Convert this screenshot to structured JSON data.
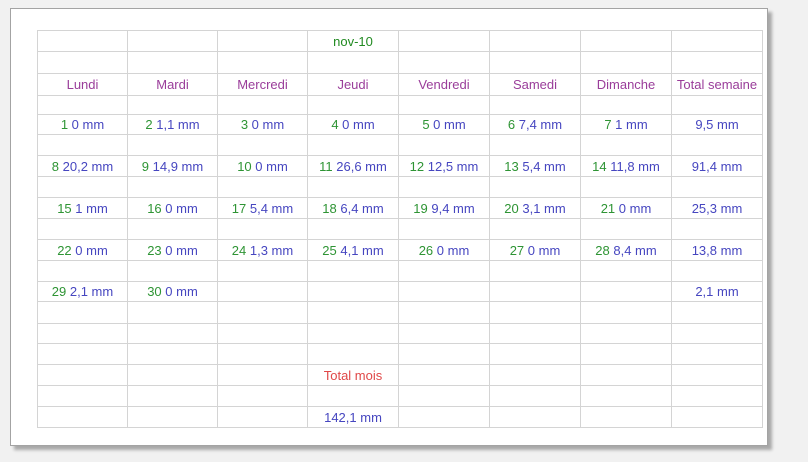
{
  "sheet": {
    "month_label": "nov-10",
    "headers": [
      "Lundi",
      "Mardi",
      "Mercredi",
      "Jeudi",
      "Vendredi",
      "Samedi",
      "Dimanche",
      "Total semaine"
    ],
    "weeks": [
      {
        "days": [
          {
            "day": "1",
            "value": "0 mm"
          },
          {
            "day": "2",
            "value": "1,1 mm"
          },
          {
            "day": "3",
            "value": "0 mm"
          },
          {
            "day": "4",
            "value": "0 mm"
          },
          {
            "day": "5",
            "value": "0 mm"
          },
          {
            "day": "6",
            "value": "7,4 mm"
          },
          {
            "day": "7",
            "value": "1 mm"
          }
        ],
        "total": "9,5 mm"
      },
      {
        "days": [
          {
            "day": "8",
            "value": "20,2 mm"
          },
          {
            "day": "9",
            "value": "14,9 mm"
          },
          {
            "day": "10",
            "value": "0 mm"
          },
          {
            "day": "11",
            "value": "26,6 mm"
          },
          {
            "day": "12",
            "value": "12,5 mm"
          },
          {
            "day": "13",
            "value": "5,4 mm"
          },
          {
            "day": "14",
            "value": "11,8 mm"
          }
        ],
        "total": "91,4 mm"
      },
      {
        "days": [
          {
            "day": "15",
            "value": "1 mm"
          },
          {
            "day": "16",
            "value": "0 mm"
          },
          {
            "day": "17",
            "value": "5,4 mm"
          },
          {
            "day": "18",
            "value": "6,4 mm"
          },
          {
            "day": "19",
            "value": "9,4 mm"
          },
          {
            "day": "20",
            "value": "3,1 mm"
          },
          {
            "day": "21",
            "value": "0 mm"
          }
        ],
        "total": "25,3 mm"
      },
      {
        "days": [
          {
            "day": "22",
            "value": "0 mm"
          },
          {
            "day": "23",
            "value": "0 mm"
          },
          {
            "day": "24",
            "value": "1,3 mm"
          },
          {
            "day": "25",
            "value": "4,1 mm"
          },
          {
            "day": "26",
            "value": "0 mm"
          },
          {
            "day": "27",
            "value": "0 mm"
          },
          {
            "day": "28",
            "value": "8,4 mm"
          }
        ],
        "total": "13,8 mm"
      },
      {
        "days": [
          {
            "day": "29",
            "value": "2,1 mm"
          },
          {
            "day": "30",
            "value": "0 mm"
          },
          null,
          null,
          null,
          null,
          null
        ],
        "total": "2,1 mm"
      },
      {
        "days": [
          null,
          null,
          null,
          null,
          null,
          null,
          null
        ],
        "total": ""
      }
    ],
    "month_total_label": "Total mois",
    "month_total_value": "142,1 mm"
  },
  "colors": {
    "day_number_green": "#2e9434",
    "value_blue": "#4646c0",
    "blue_border": "#2323bb",
    "header_purple_text": "#9a3d9a",
    "header_purple_border": "#993366",
    "month_box_green": "#218a21",
    "month_total_red": "#e03434",
    "gridline_gray": "#d4d4d4"
  }
}
